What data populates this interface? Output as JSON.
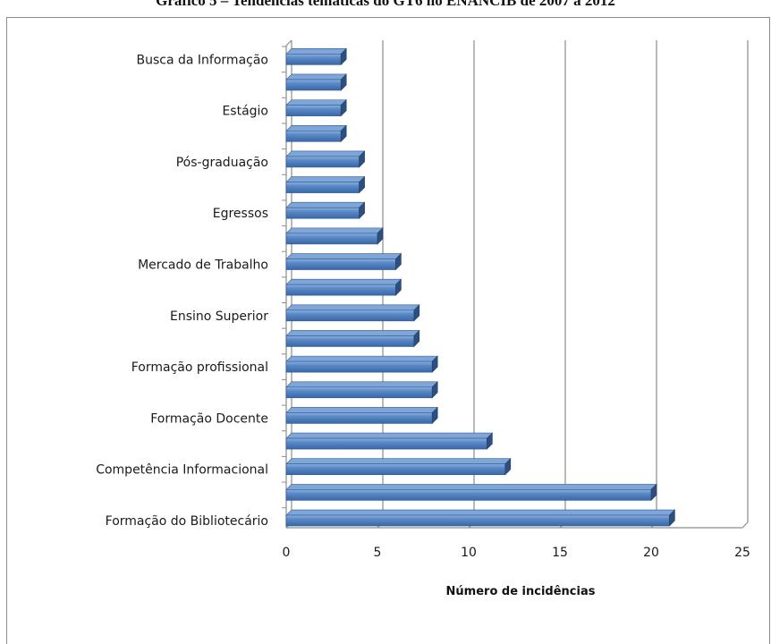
{
  "title": "Gráfico 5 – Tendências temáticas do GT6 no ENANCIB de 2007 a 2012",
  "chart_data": {
    "type": "bar",
    "orientation": "horizontal",
    "title": "Gráfico 5 – Tendências temáticas do GT6 no ENANCIB de 2007 a 2012",
    "xlabel": "Número de incidências",
    "ylabel": "",
    "xlim": [
      0,
      25
    ],
    "xticks": [
      0,
      5,
      10,
      15,
      20,
      25
    ],
    "grid": true,
    "legend": "none",
    "bar_color": "#4a7ebf",
    "categories": [
      "Busca da Informação",
      "",
      "Estágio",
      "",
      "Pós-graduação",
      "",
      "Egressos",
      "",
      "Mercado de Trabalho",
      "",
      "Ensino Superior",
      "",
      "Formação profissional",
      "",
      "Formação Docente",
      "",
      "Competência Informacional",
      "",
      "Formação do Bibliotecário"
    ],
    "values": [
      3,
      3,
      3,
      3,
      4,
      4,
      4,
      5,
      6,
      6,
      7,
      7,
      8,
      8,
      8,
      11,
      12,
      20,
      21
    ]
  }
}
